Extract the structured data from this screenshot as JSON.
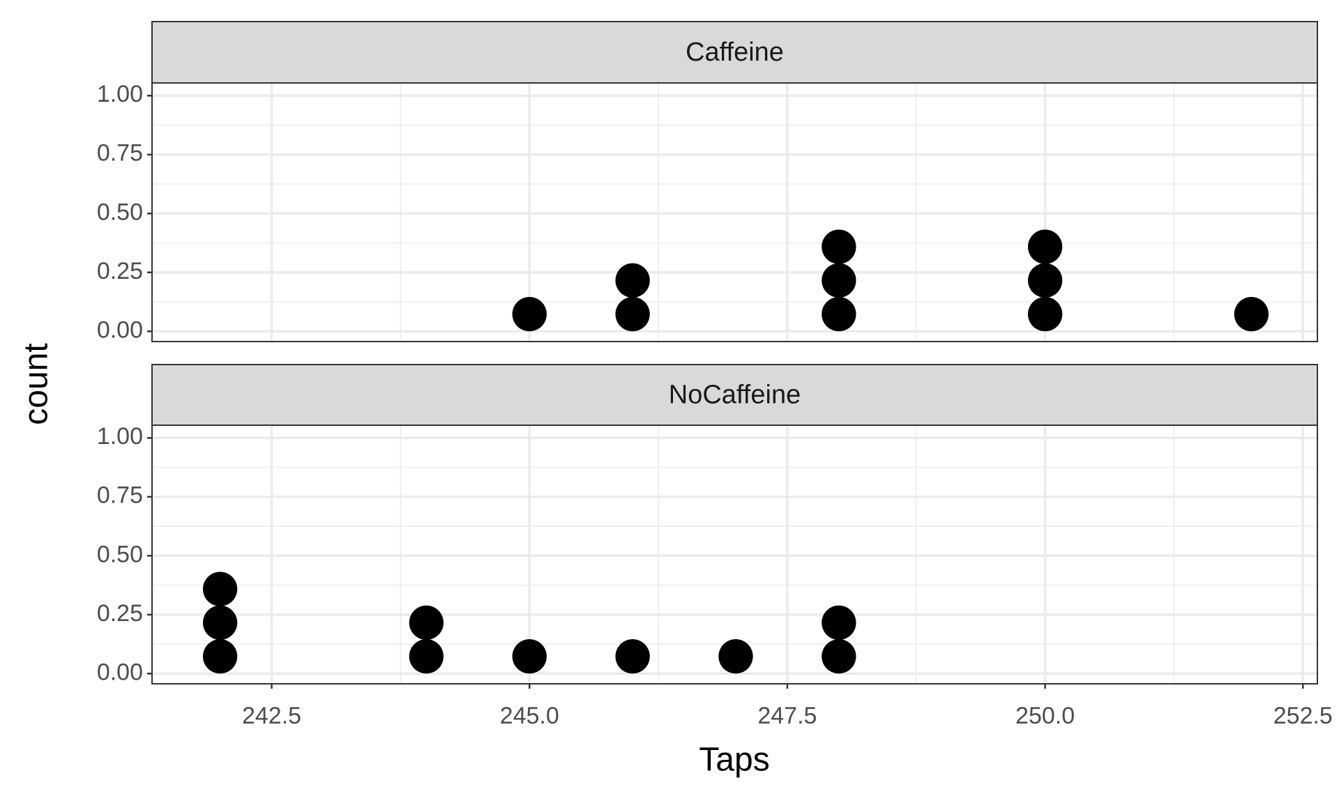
{
  "chart_data": {
    "type": "dotplot",
    "xlabel": "Taps",
    "ylabel": "count",
    "color": "#000000",
    "grid": true,
    "xlim": [
      241.34,
      252.64
    ],
    "xticks": [
      {
        "value": 242.5,
        "label": "242.5"
      },
      {
        "value": 245,
        "label": "245.0"
      },
      {
        "value": 247.5,
        "label": "247.5"
      },
      {
        "value": 250,
        "label": "250.0"
      },
      {
        "value": 252.5,
        "label": "252.5"
      }
    ],
    "ylim": [
      -0.0435,
      1.054
    ],
    "yticks": [
      {
        "value": 0,
        "label": "0.00"
      },
      {
        "value": 0.25,
        "label": "0.25"
      },
      {
        "value": 0.5,
        "label": "0.50"
      },
      {
        "value": 0.75,
        "label": "0.75"
      },
      {
        "value": 1,
        "label": "1.00"
      }
    ],
    "facets": [
      {
        "name": "Caffeine",
        "x": [
          245,
          246,
          248,
          250,
          252
        ],
        "counts": [
          1,
          2,
          3,
          3,
          1
        ]
      },
      {
        "name": "NoCaffeine",
        "x": [
          242,
          244,
          245,
          246,
          247,
          248
        ],
        "counts": [
          3,
          2,
          1,
          1,
          1,
          2
        ]
      }
    ]
  }
}
